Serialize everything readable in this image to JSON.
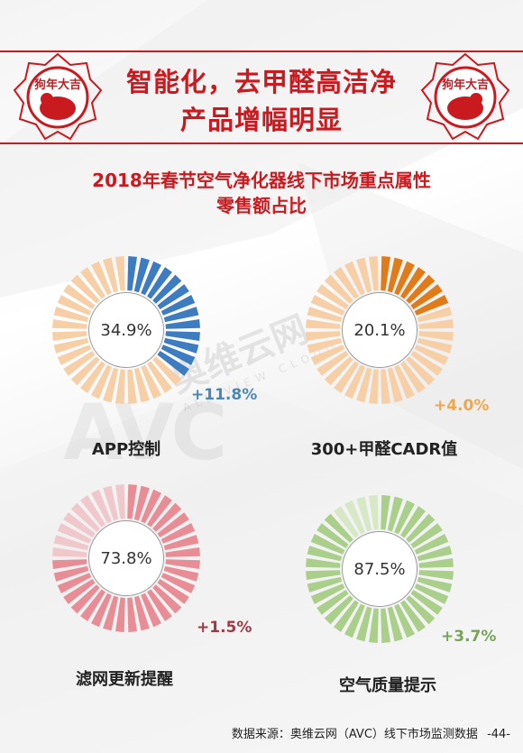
{
  "header": {
    "title_line1": "智能化，去甲醛高洁净",
    "title_line2": "产品增幅明显",
    "stamp_text": "狗年大吉"
  },
  "subtitle": {
    "line1": "2018年春节空气净化器线下市场重点属性",
    "line2": "零售额占比"
  },
  "watermark": {
    "cn": "奥维云网",
    "en": "ALL VIEW CLOUD",
    "mark": "AVC"
  },
  "chart_data": {
    "type": "pie",
    "charts": [
      {
        "label": "APP控制",
        "value_label": "34.9%",
        "value": 34.9,
        "change": "+11.8%",
        "color": "#3d7cc0",
        "light_color": "#f7cfa7",
        "change_color": "#4a87b5"
      },
      {
        "label": "300+甲醛CADR值",
        "value_label": "20.1%",
        "value": 20.1,
        "change": "+4.0%",
        "color": "#e07b1a",
        "light_color": "#f7cfa7",
        "change_color": "#f0a64a"
      },
      {
        "label": "滤网更新提醒",
        "value_label": "73.8%",
        "value": 73.8,
        "change": "+1.5%",
        "color": "#e88d95",
        "light_color": "#f0c8cc",
        "change_color": "#9a3b46"
      },
      {
        "label": "空气质量提示",
        "value_label": "87.5%",
        "value": 87.5,
        "change": "+3.7%",
        "color": "#a9cf8a",
        "light_color": "#d6e8c6",
        "change_color": "#7aa35a"
      }
    ]
  },
  "footer": {
    "source": "数据来源：奥维云网（AVC）线下市场监测数据",
    "page": "-44-"
  }
}
